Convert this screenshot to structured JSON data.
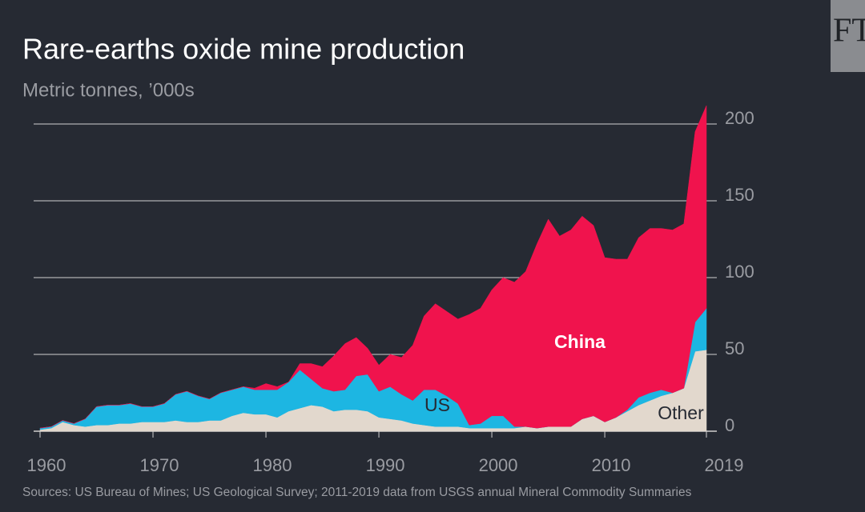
{
  "chart_data": {
    "type": "stacked-area",
    "title": "Rare-earths oxide mine production",
    "subtitle": "Metric tonnes, ’000s",
    "source": "Sources: US Bureau of Mines; US Geological Survey; 2011-2019 data from USGS annual Mineral Commodity Summaries",
    "logo": "FT",
    "x": [
      1960,
      1961,
      1962,
      1963,
      1964,
      1965,
      1966,
      1967,
      1968,
      1969,
      1970,
      1971,
      1972,
      1973,
      1974,
      1975,
      1976,
      1977,
      1978,
      1979,
      1980,
      1981,
      1982,
      1983,
      1984,
      1985,
      1986,
      1987,
      1988,
      1989,
      1990,
      1991,
      1992,
      1993,
      1994,
      1995,
      1996,
      1997,
      1998,
      1999,
      2000,
      2001,
      2002,
      2003,
      2004,
      2005,
      2006,
      2007,
      2008,
      2009,
      2010,
      2011,
      2012,
      2013,
      2014,
      2015,
      2016,
      2017,
      2018,
      2019
    ],
    "series": [
      {
        "name": "Other",
        "color": "#e2d8cd",
        "values": [
          1,
          2,
          6,
          4,
          3,
          4,
          4,
          5,
          5,
          6,
          6,
          6,
          7,
          6,
          6,
          7,
          7,
          10,
          12,
          11,
          11,
          9,
          13,
          15,
          17,
          16,
          13,
          14,
          14,
          13,
          9,
          8,
          7,
          5,
          4,
          3,
          3,
          3,
          2,
          2,
          2,
          2,
          2,
          3,
          2,
          3,
          3,
          3,
          8,
          10,
          6,
          9,
          13,
          17,
          20,
          23,
          25,
          28,
          52,
          53
        ]
      },
      {
        "name": "US",
        "color": "#1db6e2",
        "values": [
          1,
          1,
          1,
          1,
          5,
          12,
          13,
          12,
          13,
          10,
          10,
          12,
          17,
          20,
          17,
          14,
          18,
          17,
          17,
          16,
          16,
          18,
          19,
          25,
          17,
          12,
          13,
          13,
          22,
          24,
          17,
          21,
          17,
          15,
          23,
          24,
          20,
          15,
          2,
          3,
          8,
          8,
          1,
          0,
          0,
          0,
          0,
          0,
          0,
          0,
          0,
          0,
          1,
          5,
          5,
          4,
          0,
          0,
          19,
          27
        ]
      },
      {
        "name": "China",
        "color": "#f0134d",
        "values": [
          0,
          0,
          0,
          0,
          0,
          0,
          0,
          0,
          0,
          0,
          0,
          0,
          0,
          0,
          0,
          0,
          0,
          0,
          0,
          1,
          4,
          2,
          0,
          4,
          10,
          14,
          23,
          30,
          25,
          17,
          17,
          21,
          24,
          36,
          48,
          56,
          55,
          55,
          72,
          75,
          82,
          90,
          94,
          101,
          120,
          135,
          124,
          128,
          132,
          124,
          107,
          103,
          98,
          104,
          107,
          105,
          106,
          107,
          124,
          132
        ]
      }
    ],
    "xlim": [
      1960,
      2019
    ],
    "xticks": [
      1960,
      1970,
      1980,
      1990,
      2000,
      2010,
      2019
    ],
    "ylim": [
      0,
      215
    ],
    "yticks": [
      0,
      50,
      100,
      150,
      200
    ],
    "grid": true
  }
}
